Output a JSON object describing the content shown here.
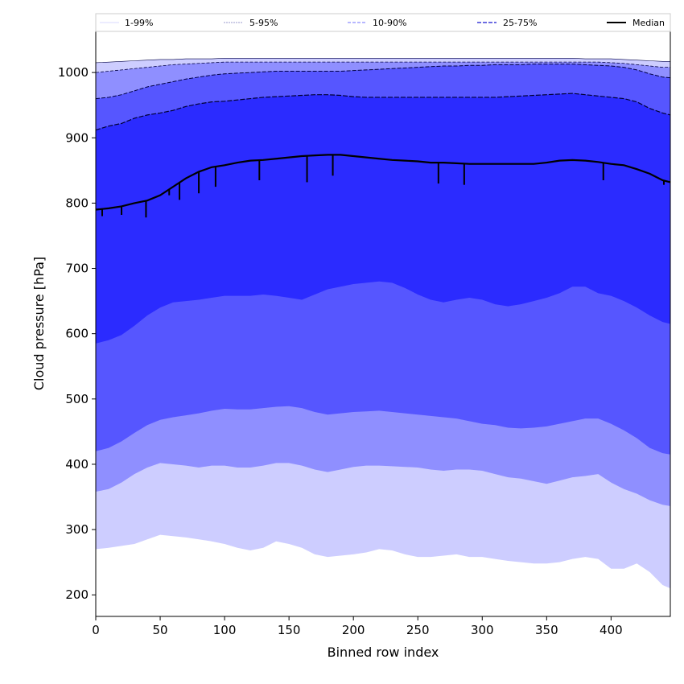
{
  "chart_data": {
    "type": "area",
    "xlabel": "Binned row index",
    "ylabel": "Cloud pressure [hPa]",
    "xlim": [
      0,
      446
    ],
    "ylim": [
      167,
      1063
    ],
    "xticks": [
      0,
      50,
      100,
      150,
      200,
      250,
      300,
      350,
      400
    ],
    "yticks": [
      200,
      300,
      400,
      500,
      600,
      700,
      800,
      900,
      1000
    ],
    "grid": false,
    "legend_position": "top",
    "colors": {
      "band_1_99": "#cdcdff",
      "band_5_95": "#8f8fff",
      "band_10_90": "#5656ff",
      "band_25_75": "#2b2bff",
      "median": "#000000"
    },
    "legend": [
      {
        "label": "1-99%",
        "style": "light-line"
      },
      {
        "label": "5-95%",
        "style": "thin-line"
      },
      {
        "label": "10-90%",
        "style": "dashed-light"
      },
      {
        "label": "25-75%",
        "style": "dashed"
      },
      {
        "label": "Median",
        "style": "solid"
      }
    ],
    "x": [
      0,
      10,
      20,
      30,
      40,
      50,
      60,
      70,
      80,
      90,
      100,
      110,
      120,
      130,
      140,
      150,
      160,
      170,
      180,
      190,
      200,
      210,
      220,
      230,
      240,
      250,
      260,
      270,
      280,
      290,
      300,
      310,
      320,
      330,
      340,
      350,
      360,
      370,
      380,
      390,
      400,
      410,
      420,
      430,
      440,
      446
    ],
    "series": [
      {
        "name": "1%",
        "values": [
          270,
          272,
          275,
          278,
          285,
          292,
          290,
          288,
          285,
          282,
          278,
          272,
          268,
          272,
          282,
          278,
          272,
          262,
          258,
          260,
          262,
          265,
          270,
          268,
          262,
          258,
          258,
          260,
          262,
          258,
          258,
          255,
          252,
          250,
          248,
          248,
          250,
          255,
          258,
          255,
          240,
          240,
          248,
          235,
          215,
          210
        ]
      },
      {
        "name": "5%",
        "values": [
          358,
          362,
          372,
          385,
          395,
          402,
          400,
          398,
          395,
          398,
          398,
          395,
          395,
          398,
          402,
          402,
          398,
          392,
          388,
          392,
          396,
          398,
          398,
          397,
          396,
          395,
          392,
          390,
          392,
          392,
          390,
          385,
          380,
          378,
          374,
          370,
          375,
          380,
          382,
          385,
          372,
          362,
          355,
          345,
          338,
          336
        ]
      },
      {
        "name": "10%",
        "values": [
          420,
          425,
          435,
          448,
          460,
          468,
          472,
          475,
          478,
          482,
          485,
          484,
          484,
          486,
          488,
          489,
          486,
          480,
          476,
          478,
          480,
          481,
          482,
          480,
          478,
          476,
          474,
          472,
          470,
          466,
          462,
          460,
          456,
          455,
          456,
          458,
          462,
          466,
          470,
          470,
          462,
          452,
          440,
          425,
          417,
          415
        ]
      },
      {
        "name": "25%",
        "values": [
          585,
          590,
          598,
          612,
          628,
          640,
          648,
          650,
          652,
          655,
          658,
          658,
          658,
          660,
          658,
          655,
          652,
          660,
          668,
          672,
          676,
          678,
          680,
          678,
          670,
          660,
          652,
          648,
          652,
          655,
          652,
          645,
          642,
          645,
          650,
          655,
          662,
          672,
          672,
          662,
          658,
          650,
          640,
          628,
          618,
          615
        ]
      },
      {
        "name": "Median",
        "values": [
          790,
          792,
          795,
          800,
          804,
          812,
          825,
          838,
          848,
          855,
          858,
          862,
          865,
          866,
          868,
          870,
          872,
          873,
          874,
          874,
          872,
          870,
          868,
          866,
          865,
          864,
          862,
          862,
          861,
          860,
          860,
          860,
          860,
          860,
          860,
          862,
          865,
          866,
          865,
          863,
          860,
          858,
          852,
          845,
          835,
          832
        ]
      },
      {
        "name": "75%",
        "values": [
          912,
          918,
          922,
          930,
          935,
          938,
          942,
          948,
          952,
          955,
          956,
          958,
          960,
          962,
          963,
          964,
          965,
          966,
          966,
          965,
          963,
          962,
          962,
          962,
          962,
          962,
          962,
          962,
          962,
          962,
          962,
          962,
          963,
          964,
          965,
          966,
          967,
          968,
          966,
          964,
          962,
          960,
          955,
          945,
          938,
          935
        ]
      },
      {
        "name": "90%",
        "values": [
          960,
          962,
          966,
          972,
          978,
          982,
          986,
          990,
          993,
          996,
          998,
          999,
          1000,
          1001,
          1002,
          1002,
          1002,
          1002,
          1002,
          1002,
          1003,
          1004,
          1005,
          1006,
          1007,
          1008,
          1009,
          1010,
          1010,
          1011,
          1011,
          1012,
          1012,
          1012,
          1013,
          1013,
          1013,
          1013,
          1012,
          1011,
          1010,
          1008,
          1004,
          998,
          993,
          992
        ]
      },
      {
        "name": "95%",
        "values": [
          1000,
          1002,
          1004,
          1006,
          1008,
          1010,
          1012,
          1013,
          1014,
          1015,
          1016,
          1016,
          1016,
          1016,
          1016,
          1016,
          1016,
          1016,
          1016,
          1016,
          1016,
          1016,
          1016,
          1016,
          1016,
          1016,
          1016,
          1016,
          1016,
          1016,
          1016,
          1016,
          1016,
          1016,
          1016,
          1016,
          1016,
          1016,
          1016,
          1016,
          1015,
          1014,
          1012,
          1010,
          1008,
          1008
        ]
      },
      {
        "name": "99%",
        "values": [
          1015,
          1016,
          1017,
          1018,
          1019,
          1020,
          1020,
          1021,
          1021,
          1021,
          1022,
          1022,
          1022,
          1022,
          1022,
          1022,
          1022,
          1022,
          1022,
          1022,
          1022,
          1022,
          1022,
          1022,
          1022,
          1022,
          1022,
          1022,
          1022,
          1022,
          1022,
          1022,
          1022,
          1022,
          1022,
          1022,
          1022,
          1022,
          1021,
          1021,
          1021,
          1020,
          1019,
          1018,
          1017,
          1017
        ]
      }
    ],
    "median_dips": [
      {
        "x": 5,
        "y": 780
      },
      {
        "x": 20,
        "y": 782
      },
      {
        "x": 39,
        "y": 778
      },
      {
        "x": 57,
        "y": 812
      },
      {
        "x": 65,
        "y": 805
      },
      {
        "x": 80,
        "y": 815
      },
      {
        "x": 93,
        "y": 825
      },
      {
        "x": 127,
        "y": 835
      },
      {
        "x": 164,
        "y": 832
      },
      {
        "x": 184,
        "y": 842
      },
      {
        "x": 266,
        "y": 830
      },
      {
        "x": 286,
        "y": 828
      },
      {
        "x": 394,
        "y": 835
      },
      {
        "x": 441,
        "y": 828
      }
    ]
  }
}
